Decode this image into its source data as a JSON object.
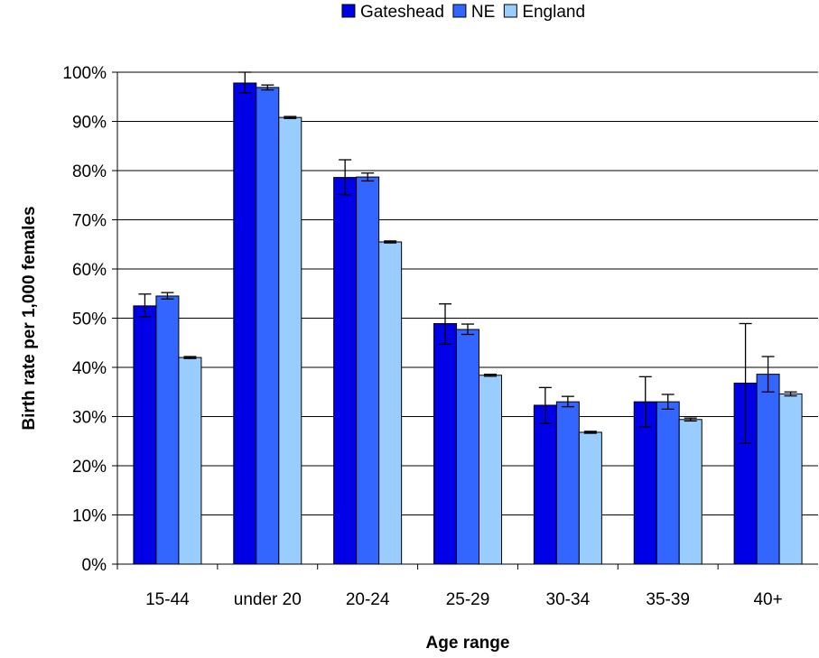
{
  "chart_data": {
    "type": "bar",
    "xlabel": "Age range",
    "ylabel": "Birth rate per 1,000 females",
    "ylim": [
      0,
      100
    ],
    "ytick_step": 10,
    "ytick_suffix": "%",
    "grid": true,
    "legend": "top-center",
    "categories": [
      "15-44",
      "under 20",
      "20-24",
      "25-29",
      "30-34",
      "35-39",
      "40+"
    ],
    "series": [
      {
        "name": "Gateshead",
        "color": "#0000e6",
        "values": [
          52.5,
          97.8,
          78.6,
          48.9,
          32.3,
          33.0,
          36.8
        ],
        "err_low": [
          50.3,
          95.8,
          75.1,
          44.7,
          28.6,
          27.9,
          24.6
        ],
        "err_high": [
          54.9,
          100.0,
          82.2,
          52.9,
          35.9,
          38.1,
          48.9
        ]
      },
      {
        "name": "NE",
        "color": "#3366ff",
        "values": [
          54.5,
          96.9,
          78.7,
          47.7,
          33.0,
          33.0,
          38.6
        ],
        "err_low": [
          53.9,
          96.4,
          77.9,
          46.7,
          32.0,
          31.5,
          35.0
        ],
        "err_high": [
          55.2,
          97.4,
          79.5,
          48.8,
          34.1,
          34.5,
          42.2
        ]
      },
      {
        "name": "England",
        "color": "#99ccff",
        "values": [
          42.0,
          90.8,
          65.5,
          38.4,
          26.8,
          29.4,
          34.6
        ],
        "err_low": [
          41.8,
          90.6,
          65.3,
          38.2,
          26.6,
          29.1,
          34.2
        ],
        "err_high": [
          42.2,
          91.0,
          65.7,
          38.6,
          27.0,
          29.7,
          35.0
        ]
      }
    ]
  }
}
